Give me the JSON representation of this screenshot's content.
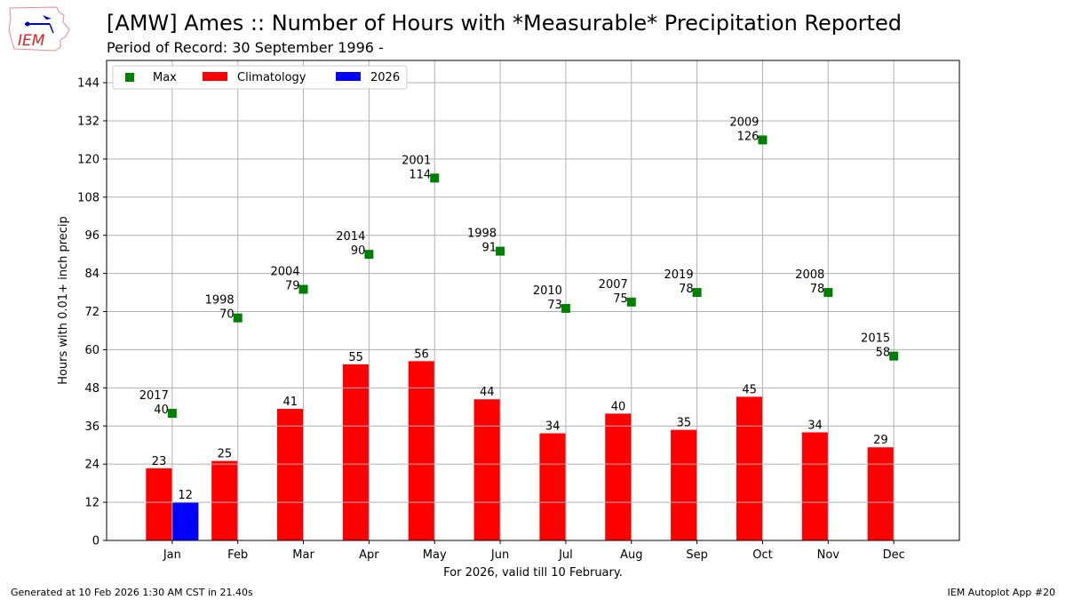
{
  "header": {
    "title": "[AMW] Ames :: Number of Hours with *Measurable* Precipitation Reported",
    "subtitle": "Period of Record: 30 September 1996 -",
    "logo_text": "IEM"
  },
  "footer": {
    "generated": "Generated at 10 Feb 2026 1:30 AM CST in 21.40s",
    "app": "IEM Autoplot App #20"
  },
  "chart_data": {
    "type": "bar",
    "title": "[AMW] Ames :: Number of Hours with *Measurable* Precipitation Reported",
    "xlabel": "For 2026, valid till 10 February.",
    "ylabel": "Hours with 0.01+ inch precip",
    "ylim": [
      0,
      151
    ],
    "yticks": [
      0,
      12,
      24,
      36,
      48,
      60,
      72,
      84,
      96,
      108,
      120,
      132,
      144
    ],
    "grid": true,
    "legend_placement": "top-left",
    "categories": [
      "Jan",
      "Feb",
      "Mar",
      "Apr",
      "May",
      "Jun",
      "Jul",
      "Aug",
      "Sep",
      "Oct",
      "Nov",
      "Dec"
    ],
    "series": [
      {
        "name": "Climatology",
        "type": "bar",
        "color": "#ff0000",
        "values": [
          22.7,
          25.0,
          41.4,
          55.4,
          56.4,
          44.4,
          33.7,
          39.9,
          34.8,
          45.2,
          34.0,
          29.3
        ],
        "labels": [
          "23",
          "25",
          "41",
          "55",
          "56",
          "44",
          "34",
          "40",
          "35",
          "45",
          "34",
          "29"
        ]
      },
      {
        "name": "2026",
        "type": "bar",
        "color": "#0000ff",
        "values": [
          12,
          null,
          null,
          null,
          null,
          null,
          null,
          null,
          null,
          null,
          null,
          null
        ],
        "labels": [
          "12",
          "",
          "",
          "",
          "",
          "",
          "",
          "",
          "",
          "",
          "",
          ""
        ]
      },
      {
        "name": "Max",
        "type": "scatter",
        "color": "#008000",
        "values": [
          40,
          70,
          79,
          90,
          114,
          91,
          73,
          75,
          78,
          126,
          78,
          58
        ],
        "years": [
          "2017",
          "1998",
          "2004",
          "2014",
          "2001",
          "1998",
          "2010",
          "2007",
          "2019",
          "2009",
          "2008",
          "2015"
        ]
      }
    ]
  }
}
